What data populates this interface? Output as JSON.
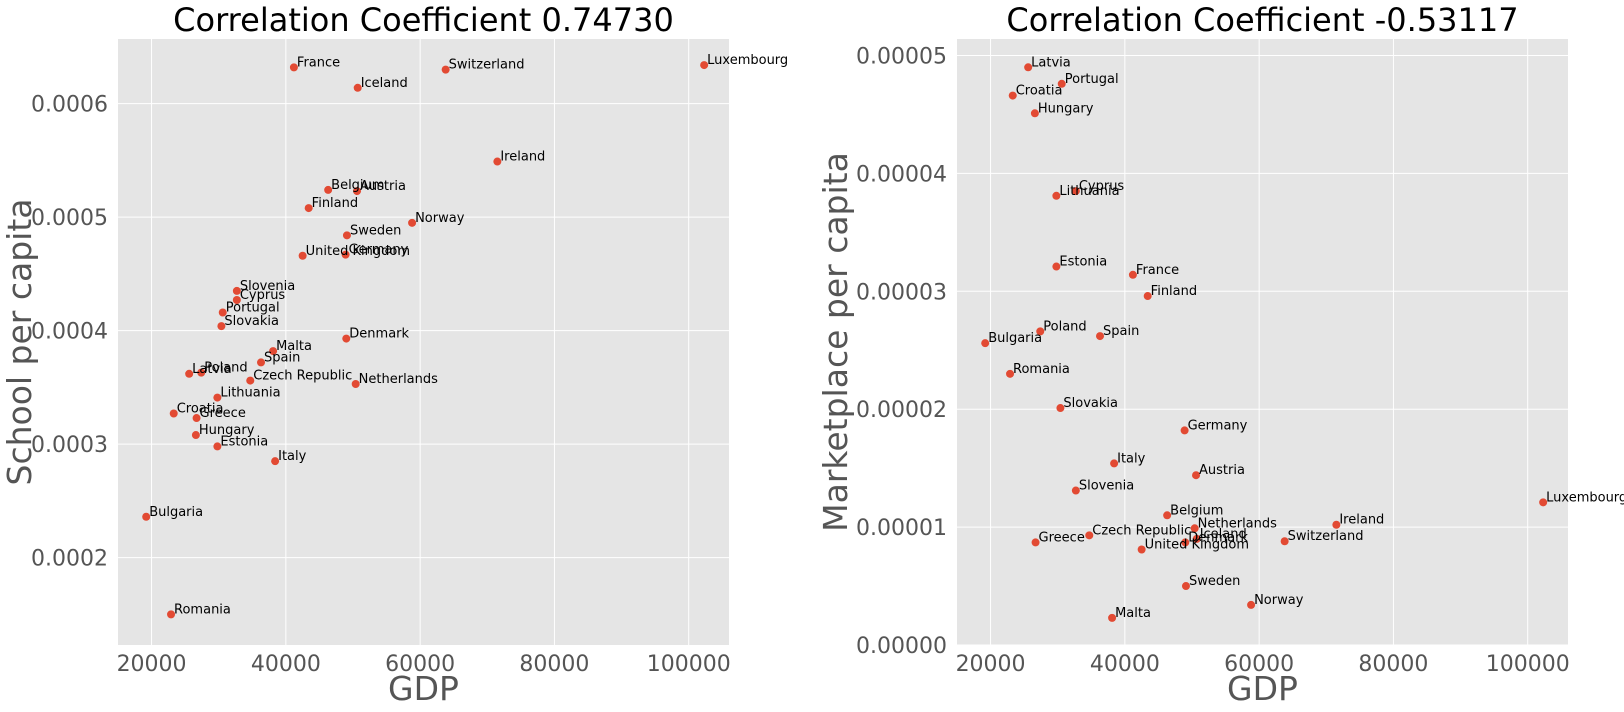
{
  "colors": {
    "marker": "#e24a33",
    "background": "#e5e5e5",
    "grid": "#ffffff",
    "axis_text": "#555555"
  },
  "chart_data": [
    {
      "type": "scatter",
      "title": "Correlation Coefficient 0.74730",
      "xlabel": "GDP",
      "ylabel": "School per capita",
      "xlim": [
        15000,
        106000
      ],
      "ylim": [
        0.000123,
        0.000657
      ],
      "xticks": [
        20000,
        40000,
        60000,
        80000,
        100000
      ],
      "xtick_labels": [
        "20000",
        "40000",
        "60000",
        "80000",
        "100000"
      ],
      "yticks": [
        0.0002,
        0.0003,
        0.0004,
        0.0005,
        0.0006
      ],
      "ytick_labels": [
        "0.0002",
        "0.0003",
        "0.0004",
        "0.0005",
        "0.0006"
      ],
      "grid": true,
      "points": [
        {
          "label": "France",
          "x": 41200,
          "y": 0.000632
        },
        {
          "label": "Switzerland",
          "x": 63800,
          "y": 0.00063
        },
        {
          "label": "Luxembourg",
          "x": 102300,
          "y": 0.000634
        },
        {
          "label": "Iceland",
          "x": 50700,
          "y": 0.000614
        },
        {
          "label": "Ireland",
          "x": 71500,
          "y": 0.000549
        },
        {
          "label": "Belgium",
          "x": 46300,
          "y": 0.000524
        },
        {
          "label": "Austria",
          "x": 50600,
          "y": 0.000523
        },
        {
          "label": "Finland",
          "x": 43400,
          "y": 0.000508
        },
        {
          "label": "Norway",
          "x": 58800,
          "y": 0.000495
        },
        {
          "label": "Sweden",
          "x": 49100,
          "y": 0.000484
        },
        {
          "label": "United Kingdom",
          "x": 42500,
          "y": 0.000466
        },
        {
          "label": "Germany",
          "x": 48900,
          "y": 0.000467
        },
        {
          "label": "Slovenia",
          "x": 32700,
          "y": 0.000435
        },
        {
          "label": "Cyprus",
          "x": 32700,
          "y": 0.000427
        },
        {
          "label": "Portugal",
          "x": 30600,
          "y": 0.000416
        },
        {
          "label": "Slovakia",
          "x": 30400,
          "y": 0.000404
        },
        {
          "label": "Denmark",
          "x": 49000,
          "y": 0.000393
        },
        {
          "label": "Malta",
          "x": 38100,
          "y": 0.000382
        },
        {
          "label": "Spain",
          "x": 36300,
          "y": 0.000372
        },
        {
          "label": "Latvia",
          "x": 25600,
          "y": 0.000362
        },
        {
          "label": "Poland",
          "x": 27400,
          "y": 0.000363
        },
        {
          "label": "Czech Republic",
          "x": 34700,
          "y": 0.000356
        },
        {
          "label": "Netherlands",
          "x": 50400,
          "y": 0.000353
        },
        {
          "label": "Lithuania",
          "x": 29800,
          "y": 0.000341
        },
        {
          "label": "Croatia",
          "x": 23300,
          "y": 0.000327
        },
        {
          "label": "Greece",
          "x": 26700,
          "y": 0.000323
        },
        {
          "label": "Hungary",
          "x": 26600,
          "y": 0.000308
        },
        {
          "label": "Estonia",
          "x": 29800,
          "y": 0.000298
        },
        {
          "label": "Italy",
          "x": 38400,
          "y": 0.000285
        },
        {
          "label": "Bulgaria",
          "x": 19200,
          "y": 0.000236
        },
        {
          "label": "Romania",
          "x": 22900,
          "y": 0.00015
        }
      ]
    },
    {
      "type": "scatter",
      "title": "Correlation Coefficient -0.53117",
      "xlabel": "GDP",
      "ylabel": "Marketplace per capita",
      "xlim": [
        15000,
        106000
      ],
      "ylim": [
        0.0,
        5.14e-05
      ],
      "xticks": [
        20000,
        40000,
        60000,
        80000,
        100000
      ],
      "xtick_labels": [
        "20000",
        "40000",
        "60000",
        "80000",
        "100000"
      ],
      "yticks": [
        0.0,
        1e-05,
        2e-05,
        3e-05,
        4e-05,
        5e-05
      ],
      "ytick_labels": [
        "0.00000",
        "0.00001",
        "0.00002",
        "0.00003",
        "0.00004",
        "0.00005"
      ],
      "grid": true,
      "points": [
        {
          "label": "Latvia",
          "x": 25600,
          "y": 4.9e-05
        },
        {
          "label": "Portugal",
          "x": 30600,
          "y": 4.76e-05
        },
        {
          "label": "Croatia",
          "x": 23300,
          "y": 4.66e-05
        },
        {
          "label": "Hungary",
          "x": 26600,
          "y": 4.51e-05
        },
        {
          "label": "Cyprus",
          "x": 32700,
          "y": 3.85e-05
        },
        {
          "label": "Lithuania",
          "x": 29800,
          "y": 3.81e-05
        },
        {
          "label": "Estonia",
          "x": 29800,
          "y": 3.21e-05
        },
        {
          "label": "France",
          "x": 41200,
          "y": 3.14e-05
        },
        {
          "label": "Finland",
          "x": 43400,
          "y": 2.96e-05
        },
        {
          "label": "Poland",
          "x": 27400,
          "y": 2.66e-05
        },
        {
          "label": "Spain",
          "x": 36300,
          "y": 2.62e-05
        },
        {
          "label": "Bulgaria",
          "x": 19200,
          "y": 2.56e-05
        },
        {
          "label": "Romania",
          "x": 22900,
          "y": 2.3e-05
        },
        {
          "label": "Slovakia",
          "x": 30400,
          "y": 2.01e-05
        },
        {
          "label": "Germany",
          "x": 48900,
          "y": 1.82e-05
        },
        {
          "label": "Italy",
          "x": 38400,
          "y": 1.54e-05
        },
        {
          "label": "Austria",
          "x": 50600,
          "y": 1.44e-05
        },
        {
          "label": "Slovenia",
          "x": 32700,
          "y": 1.31e-05
        },
        {
          "label": "Luxembourg",
          "x": 102300,
          "y": 1.21e-05
        },
        {
          "label": "Belgium",
          "x": 46300,
          "y": 1.1e-05
        },
        {
          "label": "Ireland",
          "x": 71500,
          "y": 1.02e-05
        },
        {
          "label": "Netherlands",
          "x": 50400,
          "y": 9.9e-06
        },
        {
          "label": "Czech Republic",
          "x": 34700,
          "y": 9.3e-06
        },
        {
          "label": "Iceland",
          "x": 50700,
          "y": 9e-06
        },
        {
          "label": "Switzerland",
          "x": 63800,
          "y": 8.8e-06
        },
        {
          "label": "Denmark",
          "x": 49000,
          "y": 8.7e-06
        },
        {
          "label": "Greece",
          "x": 26700,
          "y": 8.7e-06
        },
        {
          "label": "United Kingdom",
          "x": 42500,
          "y": 8.1e-06
        },
        {
          "label": "Sweden",
          "x": 49100,
          "y": 5e-06
        },
        {
          "label": "Norway",
          "x": 58800,
          "y": 3.4e-06
        },
        {
          "label": "Malta",
          "x": 38100,
          "y": 2.3e-06
        }
      ]
    }
  ]
}
